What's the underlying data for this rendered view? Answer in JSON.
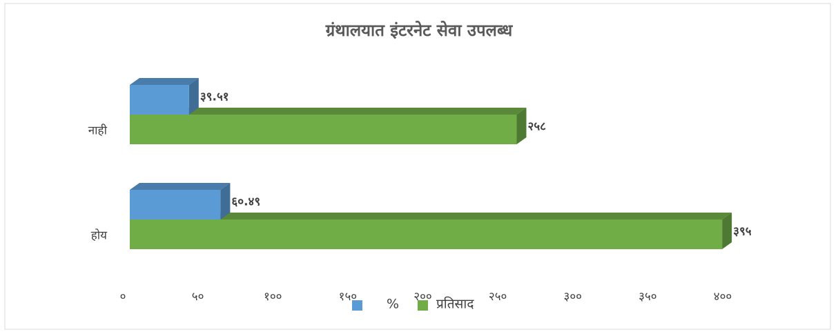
{
  "chart_data": {
    "type": "bar3d_horizontal",
    "title": "ग्रंथालयात इंटरनेट सेवा उपलब्ध",
    "categories": [
      "नाही",
      "होय"
    ],
    "series": [
      {
        "name": "%",
        "color": "#5b9bd5",
        "values": [
          39.51,
          60.49
        ],
        "value_labels": [
          "३९.५१",
          "६०.४९"
        ]
      },
      {
        "name": "प्रतिसाद",
        "color": "#70ad47",
        "values": [
          258,
          395
        ],
        "value_labels": [
          "२५८",
          "३९५"
        ]
      }
    ],
    "xlim": [
      0,
      400
    ],
    "xticks": [
      {
        "value": 0,
        "label": "०"
      },
      {
        "value": 50,
        "label": "५०"
      },
      {
        "value": 100,
        "label": "१००"
      },
      {
        "value": 150,
        "label": "१५०"
      },
      {
        "value": 200,
        "label": "२००"
      },
      {
        "value": 250,
        "label": "२५०"
      },
      {
        "value": 300,
        "label": "३००"
      },
      {
        "value": 350,
        "label": "३५०"
      },
      {
        "value": 400,
        "label": "४००"
      }
    ],
    "grid": false,
    "legend": "bottom"
  }
}
